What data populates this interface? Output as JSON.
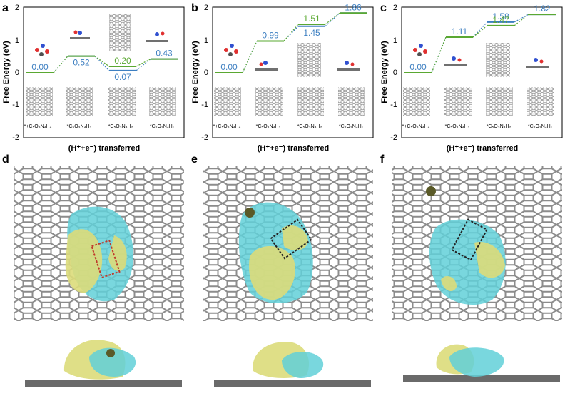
{
  "figure": {
    "panel_labels": [
      "a",
      "b",
      "c",
      "d",
      "e",
      "f"
    ]
  },
  "chart_data": [
    {
      "type": "line",
      "panel": "a",
      "ylabel": "Free Energy (eV)",
      "xlabel": "(H⁺+e⁻) transferred",
      "ylim": [
        -2,
        2
      ],
      "yticks": [
        "2",
        "1",
        "0",
        "-1",
        "-2"
      ],
      "categories": [
        "*+C₅O₃N₄H₄",
        "*C₅O₃N₄H₃",
        "*C₅O₃N₄H₂",
        "*C₅O₃N₄H₁"
      ],
      "series": [
        {
          "color": "#3d7fc1",
          "values": [
            0.0,
            0.52,
            0.07,
            0.43
          ],
          "labels": [
            "0.00",
            "0.52",
            "0.07",
            "0.43"
          ]
        },
        {
          "color": "#5aa832",
          "values": [
            0.0,
            0.52,
            0.2,
            0.43
          ],
          "labels": [
            "",
            "",
            "0.20",
            ""
          ]
        }
      ]
    },
    {
      "type": "line",
      "panel": "b",
      "ylabel": "Free Energy (eV)",
      "xlabel": "(H⁺+e⁻) transferred",
      "ylim": [
        -2,
        2
      ],
      "yticks": [
        "2",
        "1",
        "0",
        "-1",
        "-2"
      ],
      "categories": [
        "*+C₅O₃N₄H₄",
        "*C₅O₃N₄H₃",
        "*C₅O₃N₄H₂",
        "*C₅O₃N₄H₁"
      ],
      "series": [
        {
          "color": "#3d7fc1",
          "values": [
            0.0,
            0.99,
            1.45,
            1.86
          ],
          "labels": [
            "0.00",
            "0.99",
            "1.45",
            "1.86"
          ]
        },
        {
          "color": "#5aa832",
          "values": [
            0.0,
            0.99,
            1.51,
            1.86
          ],
          "labels": [
            "",
            "",
            "1.51",
            ""
          ]
        }
      ]
    },
    {
      "type": "line",
      "panel": "c",
      "ylabel": "Free Energy (eV)",
      "xlabel": "(H⁺+e⁻) transferred",
      "ylim": [
        -2,
        2
      ],
      "yticks": [
        "2",
        "1",
        "0",
        "-1",
        "-2"
      ],
      "categories": [
        "*+C₅O₃N₄H₄",
        "*C₅O₃N₄H₃",
        "*C₅O₃N₄H₂",
        "*C₅O₃N₄H₁"
      ],
      "series": [
        {
          "color": "#3d7fc1",
          "values": [
            0.0,
            1.11,
            1.58,
            1.82
          ],
          "labels": [
            "0.00",
            "1.11",
            "1.58",
            "1.82"
          ]
        },
        {
          "color": "#5aa832",
          "values": [
            0.0,
            1.11,
            1.47,
            1.82
          ],
          "labels": [
            "",
            "",
            "1.47",
            ""
          ]
        }
      ]
    }
  ]
}
